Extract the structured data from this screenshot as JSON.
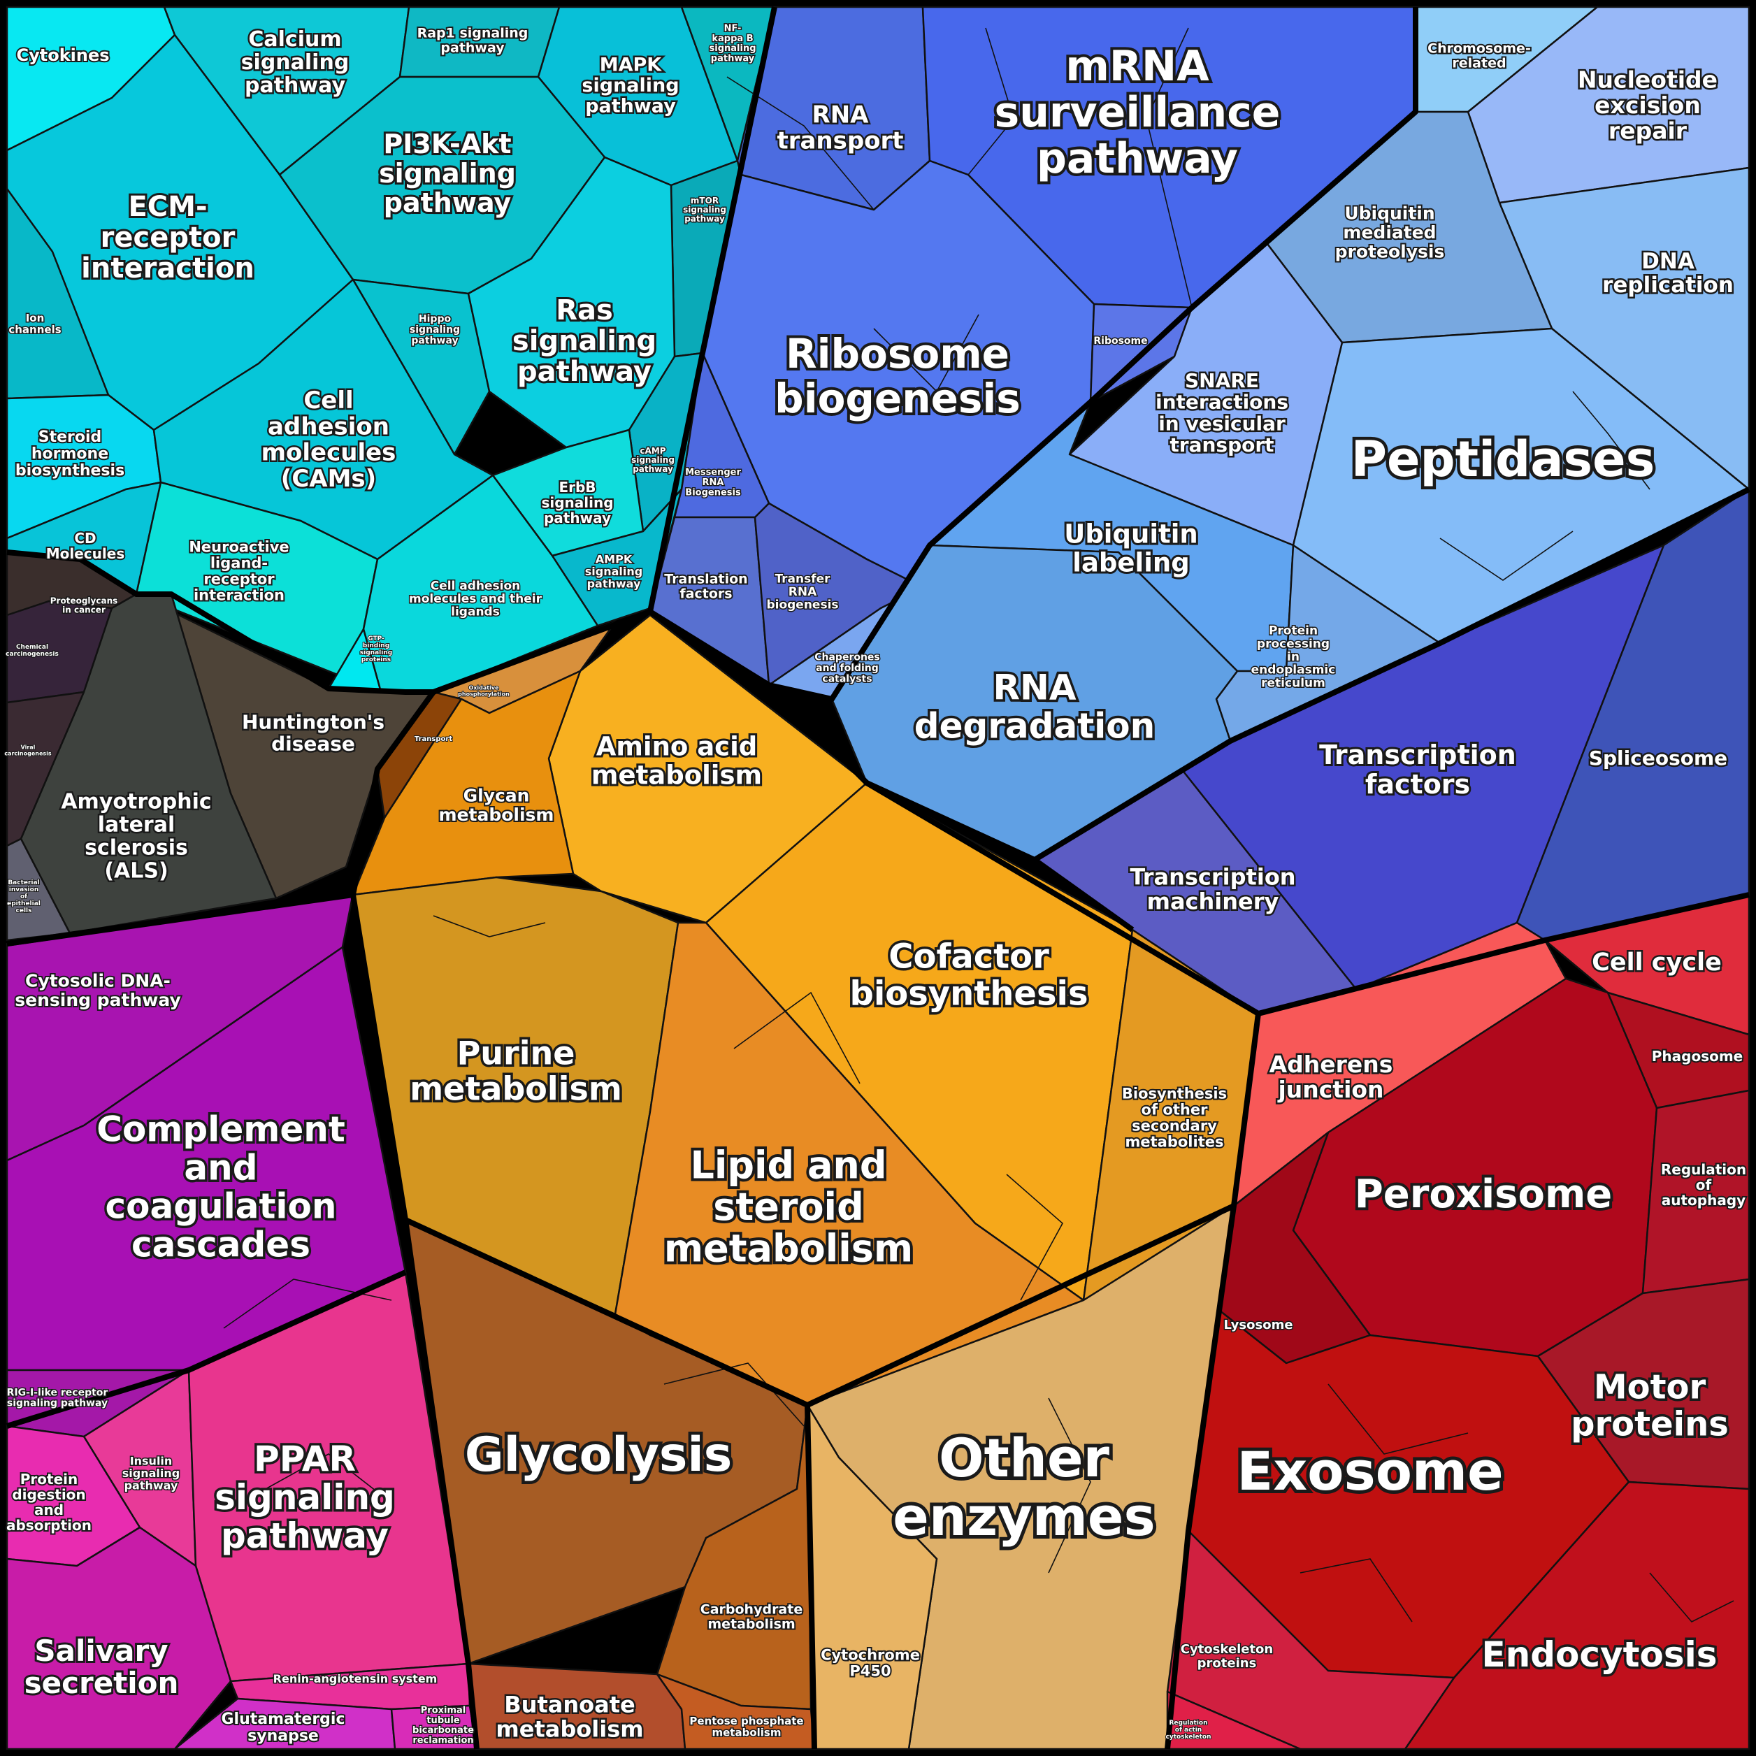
{
  "colors": {
    "signaling": "#10cbd8",
    "neuro": "#454440",
    "immune": "#b012b8",
    "ppar": "#e62f9a",
    "metabolism": "#f5a623",
    "glycolysis": "#a85a22",
    "other_enzymes": "#e0b064",
    "genetic": "#4a66e8",
    "ubiquitin": "#7aa8e8",
    "transcription": "#4646c8",
    "cellular": "#b80c1c",
    "outline": "#000000"
  },
  "groups": {
    "signaling": {
      "cells": [
        {
          "label": "Cytokines",
          "color": "#08e8f2"
        },
        {
          "label": "Calcium signaling pathway",
          "color": "#0ec8d6"
        },
        {
          "label": "Rap1 signaling pathway",
          "color": "#0fb8c4"
        },
        {
          "label": "MAPK signaling pathway",
          "color": "#08c0d8"
        },
        {
          "label": "NF-kappa B signaling pathway",
          "color": "#0bb8c0"
        },
        {
          "label": "ECM-receptor interaction",
          "color": "#07c8dc"
        },
        {
          "label": "PI3K-Akt signaling pathway",
          "color": "#0bc0cc"
        },
        {
          "label": "mTOR signaling pathway",
          "color": "#0aaab8"
        },
        {
          "label": "Ion channels",
          "color": "#08b8c8"
        },
        {
          "label": "Hippo signaling pathway",
          "color": "#09c2cf"
        },
        {
          "label": "Ras signaling pathway",
          "color": "#0ccfe0"
        },
        {
          "label": "Steroid hormone biosynthesis",
          "color": "#08d8f0"
        },
        {
          "label": "Cell adhesion molecules (CAMs)",
          "color": "#06c6d8"
        },
        {
          "label": "cAMP signaling pathway",
          "color": "#09b2c6"
        },
        {
          "label": "ErbB signaling pathway",
          "color": "#10dcdc"
        },
        {
          "label": "CD Molecules",
          "color": "#08c4d8"
        },
        {
          "label": "Neuroactive ligand-receptor interaction",
          "color": "#0ce0d8"
        },
        {
          "label": "AMPK signaling pathway",
          "color": "#08b8cc"
        },
        {
          "label": "Cell adhesion molecules and their ligands",
          "color": "#0ad8dc"
        },
        {
          "label": "GTP-binding signaling proteins",
          "color": "#00e8f0"
        }
      ]
    },
    "neuro": {
      "cells": [
        {
          "label": "Proteoglycans in cancer",
          "color": "#3a2e2c"
        },
        {
          "label": "Chemical carcinogenesis",
          "color": "#36243a"
        },
        {
          "label": "Huntington's disease",
          "color": "#4e4438"
        },
        {
          "label": "Viral carcinogenesis",
          "color": "#3a2a32"
        },
        {
          "label": "Amyotrophic lateral sclerosis (ALS)",
          "color": "#3e423e"
        },
        {
          "label": "Bacterial invasion of epithelial cells",
          "color": "#606070"
        }
      ]
    },
    "immune": {
      "cells": [
        {
          "label": "Cytosolic DNA-sensing pathway",
          "color": "#a814b0"
        },
        {
          "label": "Complement and coagulation cascades",
          "color": "#a810b4"
        },
        {
          "label": "RIG-I-like receptor signaling pathway",
          "color": "#a418a8"
        }
      ]
    },
    "ppar": {
      "cells": [
        {
          "label": "Insulin signaling pathway",
          "color": "#e83a98"
        },
        {
          "label": "Protein digestion and absorption",
          "color": "#e82cb0"
        },
        {
          "label": "PPAR signaling pathway",
          "color": "#e8358e"
        },
        {
          "label": "Salivary secretion",
          "color": "#c81ca8"
        },
        {
          "label": "Renin-angiotensin system",
          "color": "#e8309a"
        },
        {
          "label": "Glutamatergic synapse",
          "color": "#d030c8"
        },
        {
          "label": "Proximal tubule bicarbonate reclamation",
          "color": "#d82cb8"
        }
      ]
    },
    "metabolism": {
      "cells": [
        {
          "label": "Oxidative phosphorylation",
          "color": "#d8903c"
        },
        {
          "label": "Transport",
          "color": "#8c4408"
        },
        {
          "label": "Amino acid metabolism",
          "color": "#f8b020"
        },
        {
          "label": "Glycan metabolism",
          "color": "#e8900e"
        },
        {
          "label": "Cofactor biosynthesis",
          "color": "#f6a81a"
        },
        {
          "label": "Purine metabolism",
          "color": "#d49620"
        },
        {
          "label": "Biosynthesis of other secondary metabolites",
          "color": "#e49a22"
        },
        {
          "label": "Lipid and steroid metabolism",
          "color": "#e88c24"
        }
      ]
    },
    "glycolysis": {
      "cells": [
        {
          "label": "Glycolysis",
          "color": "#a65c24"
        },
        {
          "label": "Carbohydrate metabolism",
          "color": "#b8621c"
        },
        {
          "label": "Butanoate metabolism",
          "color": "#b24e2c"
        },
        {
          "label": "Pentose phosphate metabolism",
          "color": "#c45c22"
        }
      ]
    },
    "other_enzymes": {
      "cells": [
        {
          "label": "Other enzymes",
          "color": "#deb06a"
        },
        {
          "label": "Cytochrome P450",
          "color": "#e8b464"
        }
      ]
    },
    "genetic": {
      "cells": [
        {
          "label": "RNA transport",
          "color": "#4c6ce0"
        },
        {
          "label": "mRNA surveillance pathway",
          "color": "#4868ec"
        },
        {
          "label": "Ribosome biogenesis",
          "color": "#5478f0"
        },
        {
          "label": "Ribosome",
          "color": "#5c76e8"
        },
        {
          "label": "Messenger RNA Biogenesis",
          "color": "#4e6ae0"
        },
        {
          "label": "Translation factors",
          "color": "#5870d0"
        },
        {
          "label": "Transfer RNA biogenesis",
          "color": "#5062c8"
        }
      ]
    },
    "ubiquitin": {
      "cells": [
        {
          "label": "Chromosome-related",
          "color": "#90cef8"
        },
        {
          "label": "Nucleotide excision repair",
          "color": "#98b8f8"
        },
        {
          "label": "DNA replication",
          "color": "#88bcf4"
        },
        {
          "label": "Ubiquitin mediated proteolysis",
          "color": "#78a8e0"
        },
        {
          "label": "SNARE interactions in vesicular transport",
          "color": "#8aaef8"
        },
        {
          "label": "Peptidases",
          "color": "#84bcf8"
        },
        {
          "label": "Ubiquitin labeling",
          "color": "#60a4f0"
        },
        {
          "label": "Protein processing in endoplasmic reticulum",
          "color": "#74a8e8"
        },
        {
          "label": "Chaperones and folding catalysts",
          "color": "#7aa6f0"
        },
        {
          "label": "RNA degradation",
          "color": "#60a0e4"
        }
      ]
    },
    "transcription": {
      "cells": [
        {
          "label": "Transcription factors",
          "color": "#4648cc"
        },
        {
          "label": "Spliceosome",
          "color": "#3e54b8"
        },
        {
          "label": "Transcription machinery",
          "color": "#5c5cc4"
        }
      ]
    },
    "cellular": {
      "cells": [
        {
          "label": "Cell cycle",
          "color": "#e02c3c"
        },
        {
          "label": "Adherens junction",
          "color": "#f85858"
        },
        {
          "label": "Phagosome",
          "color": "#b01020"
        },
        {
          "label": "Peroxisome",
          "color": "#b0081c"
        },
        {
          "label": "Regulation of autophagy",
          "color": "#b01428"
        },
        {
          "label": "Lysosome",
          "color": "#a00818"
        },
        {
          "label": "Motor proteins",
          "color": "#a81828"
        },
        {
          "label": "Exosome",
          "color": "#c01010"
        },
        {
          "label": "Endocytosis",
          "color": "#c0101c"
        },
        {
          "label": "Cytoskeleton proteins",
          "color": "#d02040"
        },
        {
          "label": "Regulation of actin cytoskeleton",
          "color": "#e02048"
        }
      ]
    }
  }
}
